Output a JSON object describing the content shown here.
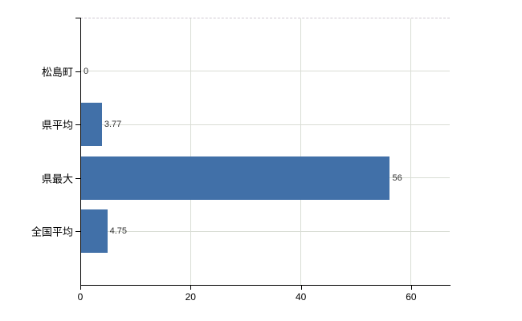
{
  "chart_data": {
    "type": "bar",
    "orientation": "horizontal",
    "title": "",
    "categories": [
      "松島町",
      "県平均",
      "県最大",
      "全国平均"
    ],
    "values": [
      0,
      3.77,
      56,
      4.75
    ],
    "value_labels": [
      "0",
      "3.77",
      "56",
      "4.75"
    ],
    "x_ticks": [
      0,
      20,
      40,
      60
    ],
    "x_tick_labels": [
      "0",
      "20",
      "40",
      "60"
    ],
    "xlim": [
      0,
      67
    ],
    "grid": "light horizontal gridline per category and vertical gridline per x tick",
    "legend_position": "none",
    "colors": {
      "bar": "#4170a8",
      "grid": "#d9ddd5",
      "plot_top_border": "#cfc9d2",
      "axis": "#000000",
      "category_text": "#000000",
      "value_text": "#333333",
      "background": "#ffffff"
    }
  }
}
